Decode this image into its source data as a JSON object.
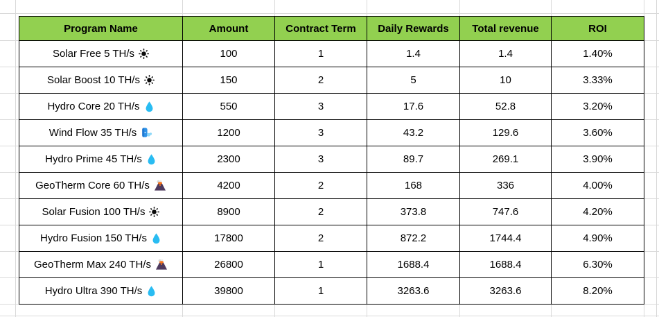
{
  "table": {
    "columns": [
      "Program Name",
      "Amount",
      "Contract Term",
      "Daily Rewards",
      "Total revenue",
      "ROI"
    ],
    "rows": [
      {
        "program": "Solar Free 5 TH/s",
        "icon": "sun-icon",
        "amount": "100",
        "contract_term": "1",
        "daily_rewards": "1.4",
        "total_revenue": "1.4",
        "roi": "1.40%"
      },
      {
        "program": "Solar Boost 10 TH/s",
        "icon": "sun-icon",
        "amount": "150",
        "contract_term": "2",
        "daily_rewards": "5",
        "total_revenue": "10",
        "roi": "3.33%"
      },
      {
        "program": "Hydro Core 20 TH/s",
        "icon": "droplet-icon",
        "amount": "550",
        "contract_term": "3",
        "daily_rewards": "17.6",
        "total_revenue": "52.8",
        "roi": "3.20%"
      },
      {
        "program": "Wind Flow 35 TH/s",
        "icon": "wind-icon",
        "amount": "1200",
        "contract_term": "3",
        "daily_rewards": "43.2",
        "total_revenue": "129.6",
        "roi": "3.60%"
      },
      {
        "program": "Hydro Prime 45 TH/s",
        "icon": "droplet-icon",
        "amount": "2300",
        "contract_term": "3",
        "daily_rewards": "89.7",
        "total_revenue": "269.1",
        "roi": "3.90%"
      },
      {
        "program": "GeoTherm Core 60 TH/s",
        "icon": "volcano-icon",
        "amount": "4200",
        "contract_term": "2",
        "daily_rewards": "168",
        "total_revenue": "336",
        "roi": "4.00%"
      },
      {
        "program": "Solar Fusion 100 TH/s",
        "icon": "sun-icon",
        "amount": "8900",
        "contract_term": "2",
        "daily_rewards": "373.8",
        "total_revenue": "747.6",
        "roi": "4.20%"
      },
      {
        "program": "Hydro Fusion 150 TH/s",
        "icon": "droplet-icon",
        "amount": "17800",
        "contract_term": "2",
        "daily_rewards": "872.2",
        "total_revenue": "1744.4",
        "roi": "4.90%"
      },
      {
        "program": "GeoTherm Max 240 TH/s",
        "icon": "volcano-icon",
        "amount": "26800",
        "contract_term": "1",
        "daily_rewards": "1688.4",
        "total_revenue": "1688.4",
        "roi": "6.30%"
      },
      {
        "program": "Hydro Ultra 390 TH/s",
        "icon": "droplet-icon",
        "amount": "39800",
        "contract_term": "1",
        "daily_rewards": "3263.6",
        "total_revenue": "3263.6",
        "roi": "8.20%"
      }
    ]
  },
  "colors": {
    "header_bg": "#92D050",
    "table_border": "#000000",
    "gridline": "#D9D9D9",
    "sun_black": "#0a0a0a",
    "droplet_blue": "#29BCF2",
    "wind_blue": "#2F93E8",
    "wind_blue_dark": "#1565C0",
    "wind_puff": "#8ED8F8",
    "volcano_body": "#4E3A5E",
    "volcano_lava": "#F4731C",
    "volcano_smoke": "#D8D8D8"
  }
}
